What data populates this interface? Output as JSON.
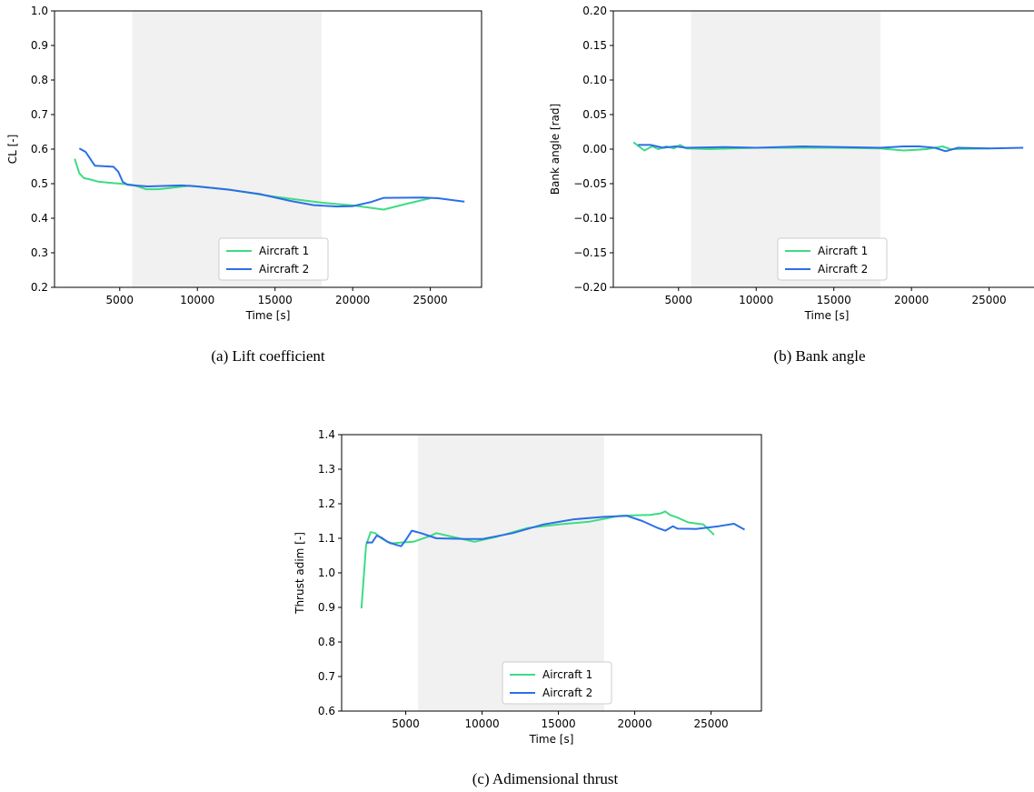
{
  "figure": {
    "captions": [
      "(a)  Lift coefficient",
      "(b)  Bank angle",
      "(c)  Adimensional thrust"
    ]
  },
  "chart_data": [
    {
      "type": "line",
      "xlabel": "Time [s]",
      "ylabel": "CL [-]",
      "xlim": [
        800,
        28300
      ],
      "ylim": [
        0.2,
        1.0
      ],
      "xticks": [
        5000,
        10000,
        15000,
        20000,
        25000
      ],
      "yticks": [
        0.2,
        0.3,
        0.4,
        0.5,
        0.6,
        0.7,
        0.8,
        0.9,
        1.0
      ],
      "ytick_labels": [
        "0.2",
        "0.3",
        "0.4",
        "0.5",
        "0.6",
        "0.7",
        "0.8",
        "0.9",
        "1.0"
      ],
      "shaded_region": [
        5800,
        18000
      ],
      "legend": "lower-center",
      "grid": false,
      "series": [
        {
          "name": "Aircraft 1",
          "color": "#3ddc84",
          "points": [
            [
              2100,
              0.572
            ],
            [
              2400,
              0.53
            ],
            [
              2700,
              0.516
            ],
            [
              3100,
              0.512
            ],
            [
              3600,
              0.506
            ],
            [
              4500,
              0.502
            ],
            [
              5300,
              0.499
            ],
            [
              5900,
              0.496
            ],
            [
              6700,
              0.484
            ],
            [
              7500,
              0.484
            ],
            [
              9500,
              0.494
            ],
            [
              12000,
              0.483
            ],
            [
              15000,
              0.462
            ],
            [
              18000,
              0.445
            ],
            [
              20000,
              0.437
            ],
            [
              22000,
              0.425
            ],
            [
              23500,
              0.442
            ],
            [
              25000,
              0.458
            ]
          ]
        },
        {
          "name": "Aircraft 2",
          "color": "#2c6ee8",
          "points": [
            [
              2400,
              0.602
            ],
            [
              2800,
              0.592
            ],
            [
              3400,
              0.552
            ],
            [
              4600,
              0.549
            ],
            [
              4900,
              0.535
            ],
            [
              5200,
              0.505
            ],
            [
              5500,
              0.497
            ],
            [
              5900,
              0.495
            ],
            [
              6800,
              0.492
            ],
            [
              9000,
              0.495
            ],
            [
              10000,
              0.492
            ],
            [
              12000,
              0.483
            ],
            [
              14000,
              0.47
            ],
            [
              16000,
              0.45
            ],
            [
              17500,
              0.438
            ],
            [
              19000,
              0.434
            ],
            [
              20000,
              0.435
            ],
            [
              21200,
              0.447
            ],
            [
              22000,
              0.459
            ],
            [
              24500,
              0.46
            ],
            [
              25500,
              0.458
            ],
            [
              27200,
              0.448
            ]
          ]
        }
      ]
    },
    {
      "type": "line",
      "xlabel": "Time [s]",
      "ylabel": "Bank angle [rad]",
      "xlim": [
        800,
        28300
      ],
      "ylim": [
        -0.2,
        0.2
      ],
      "xticks": [
        5000,
        10000,
        15000,
        20000,
        25000
      ],
      "yticks": [
        -0.2,
        -0.15,
        -0.1,
        -0.05,
        0.0,
        0.05,
        0.1,
        0.15,
        0.2
      ],
      "ytick_labels": [
        "−0.20",
        "−0.15",
        "−0.10",
        "−0.05",
        "0.00",
        "0.05",
        "0.10",
        "0.15",
        "0.20"
      ],
      "shaded_region": [
        5800,
        18000
      ],
      "legend": "lower-center",
      "grid": false,
      "series": [
        {
          "name": "Aircraft 1",
          "color": "#3ddc84",
          "points": [
            [
              2100,
              0.01
            ],
            [
              2500,
              0.003
            ],
            [
              2800,
              -0.002
            ],
            [
              3300,
              0.004
            ],
            [
              3700,
              0.0
            ],
            [
              4200,
              0.004
            ],
            [
              4700,
              0.001
            ],
            [
              5100,
              0.006
            ],
            [
              5500,
              0.001
            ],
            [
              7000,
              0.0
            ],
            [
              10000,
              0.002
            ],
            [
              15000,
              0.002
            ],
            [
              18000,
              0.001
            ],
            [
              19500,
              -0.002
            ],
            [
              21000,
              0.0
            ],
            [
              22000,
              0.004
            ],
            [
              22500,
              0.0
            ],
            [
              25000,
              0.001
            ]
          ]
        },
        {
          "name": "Aircraft 2",
          "color": "#2c6ee8",
          "points": [
            [
              2400,
              0.006
            ],
            [
              3200,
              0.006
            ],
            [
              4000,
              0.002
            ],
            [
              4800,
              0.004
            ],
            [
              5500,
              0.002
            ],
            [
              8000,
              0.003
            ],
            [
              10000,
              0.002
            ],
            [
              13000,
              0.004
            ],
            [
              15500,
              0.003
            ],
            [
              18000,
              0.002
            ],
            [
              19500,
              0.004
            ],
            [
              20500,
              0.004
            ],
            [
              21500,
              0.002
            ],
            [
              22200,
              -0.003
            ],
            [
              23000,
              0.002
            ],
            [
              25000,
              0.001
            ],
            [
              27200,
              0.002
            ]
          ]
        }
      ]
    },
    {
      "type": "line",
      "xlabel": "Time [s]",
      "ylabel": "Thrust adim [-]",
      "xlim": [
        800,
        28300
      ],
      "ylim": [
        0.6,
        1.4
      ],
      "xticks": [
        5000,
        10000,
        15000,
        20000,
        25000
      ],
      "yticks": [
        0.6,
        0.7,
        0.8,
        0.9,
        1.0,
        1.1,
        1.2,
        1.3,
        1.4
      ],
      "ytick_labels": [
        "0.6",
        "0.7",
        "0.8",
        "0.9",
        "1.0",
        "1.1",
        "1.2",
        "1.3",
        "1.4"
      ],
      "shaded_region": [
        5800,
        18000
      ],
      "legend": "lower-center",
      "grid": false,
      "series": [
        {
          "name": "Aircraft 1",
          "color": "#3ddc84",
          "points": [
            [
              2100,
              0.897
            ],
            [
              2400,
              1.08
            ],
            [
              2700,
              1.118
            ],
            [
              3000,
              1.115
            ],
            [
              3400,
              1.1
            ],
            [
              4000,
              1.085
            ],
            [
              4700,
              1.088
            ],
            [
              5500,
              1.09
            ],
            [
              6500,
              1.105
            ],
            [
              7000,
              1.115
            ],
            [
              8000,
              1.105
            ],
            [
              9500,
              1.09
            ],
            [
              11000,
              1.105
            ],
            [
              13000,
              1.13
            ],
            [
              15000,
              1.14
            ],
            [
              17000,
              1.148
            ],
            [
              19000,
              1.165
            ],
            [
              21000,
              1.168
            ],
            [
              21700,
              1.172
            ],
            [
              22000,
              1.178
            ],
            [
              22300,
              1.168
            ],
            [
              22800,
              1.16
            ],
            [
              23500,
              1.146
            ],
            [
              24500,
              1.14
            ],
            [
              25200,
              1.11
            ]
          ]
        },
        {
          "name": "Aircraft 2",
          "color": "#2c6ee8",
          "points": [
            [
              2400,
              1.088
            ],
            [
              2800,
              1.088
            ],
            [
              3100,
              1.108
            ],
            [
              3400,
              1.102
            ],
            [
              3800,
              1.09
            ],
            [
              4300,
              1.082
            ],
            [
              4700,
              1.077
            ],
            [
              5000,
              1.095
            ],
            [
              5400,
              1.122
            ],
            [
              6000,
              1.115
            ],
            [
              7000,
              1.1
            ],
            [
              9000,
              1.098
            ],
            [
              10000,
              1.098
            ],
            [
              12000,
              1.115
            ],
            [
              14000,
              1.14
            ],
            [
              16000,
              1.155
            ],
            [
              18000,
              1.162
            ],
            [
              19500,
              1.165
            ],
            [
              20500,
              1.15
            ],
            [
              21500,
              1.13
            ],
            [
              22000,
              1.122
            ],
            [
              22500,
              1.135
            ],
            [
              22800,
              1.128
            ],
            [
              24000,
              1.127
            ],
            [
              25500,
              1.135
            ],
            [
              26500,
              1.142
            ],
            [
              27200,
              1.125
            ]
          ]
        }
      ]
    }
  ]
}
